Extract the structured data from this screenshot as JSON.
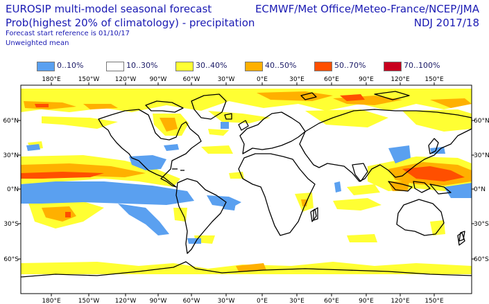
{
  "header": {
    "title_line1": "EUROSIP multi-model seasonal forecast",
    "title_line2": "Prob(highest 20% of climatology) - precipitation",
    "subtitle_line1": "Forecast start reference is 01/10/17",
    "subtitle_line2": "Unweighted mean",
    "centres": "ECMWF/Met Office/Meteo-France/NCEP/JMA",
    "period": "NDJ 2017/18"
  },
  "legend": [
    {
      "label": "0..10%",
      "color": "#5aa0f0"
    },
    {
      "label": "10..30%",
      "color": "#ffffff"
    },
    {
      "label": "30..40%",
      "color": "#ffff33"
    },
    {
      "label": "40..50%",
      "color": "#ffb000"
    },
    {
      "label": "50..70%",
      "color": "#ff4f00"
    },
    {
      "label": "70..100%",
      "color": "#c8001e"
    }
  ],
  "map": {
    "lon_labels_top": [
      "180°E",
      "150°W",
      "120°W",
      "90°W",
      "60°W",
      "30°W",
      "0°E",
      "30°E",
      "60°E",
      "90°E",
      "120°E",
      "150°E"
    ],
    "lon_labels_bottom": [
      "180°E",
      "150°W",
      "120°W",
      "90°W",
      "60°W",
      "30°W",
      "0°E",
      "30°E",
      "60°E",
      "90°E",
      "120°E",
      "150°E"
    ],
    "lat_labels": [
      "60°N",
      "30°N",
      "0°N",
      "30°S",
      "60°S"
    ]
  }
}
